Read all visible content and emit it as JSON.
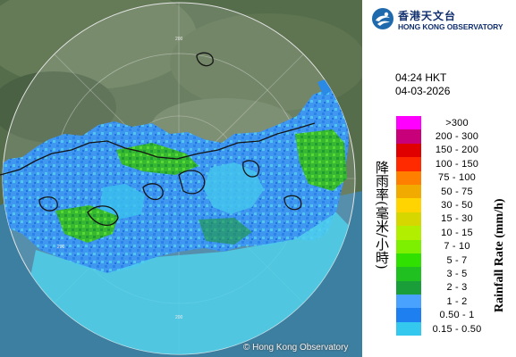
{
  "map": {
    "copyright": "© Hong Kong Observatory",
    "range_labels": [
      "200",
      "200",
      "200"
    ]
  },
  "logo": {
    "name_zh": "香港天文台",
    "name_en": "HONG KONG OBSERVATORY"
  },
  "timestamp": {
    "time": "04:24 HKT",
    "date": "04-03-2026"
  },
  "legend": {
    "title_zh": "降雨率(毫米/小時)",
    "title_en": "Rainfall Rate (mm/h)",
    "classes": [
      {
        "label": ">300",
        "color": "#ff00ff"
      },
      {
        "label": "200 - 300",
        "color": "#c8007a"
      },
      {
        "label": "150 - 200",
        "color": "#e00000"
      },
      {
        "label": "100 - 150",
        "color": "#ff2a00"
      },
      {
        "label": "75 - 100",
        "color": "#ff8000"
      },
      {
        "label": "50 - 75",
        "color": "#f0aa00"
      },
      {
        "label": "30 - 50",
        "color": "#ffd400"
      },
      {
        "label": "15 - 30",
        "color": "#d6d600"
      },
      {
        "label": "10 - 15",
        "color": "#b2ee00"
      },
      {
        "label": "7 - 10",
        "color": "#7cf000"
      },
      {
        "label": "5 - 7",
        "color": "#30e000"
      },
      {
        "label": "3 - 5",
        "color": "#20c020"
      },
      {
        "label": "2 - 3",
        "color": "#1a9e3a"
      },
      {
        "label": "1 - 2",
        "color": "#4aa2ff"
      },
      {
        "label": "0.50 - 1",
        "color": "#1e80f0"
      },
      {
        "label": "0.15 - 0.50",
        "color": "#35c8ee"
      }
    ]
  }
}
